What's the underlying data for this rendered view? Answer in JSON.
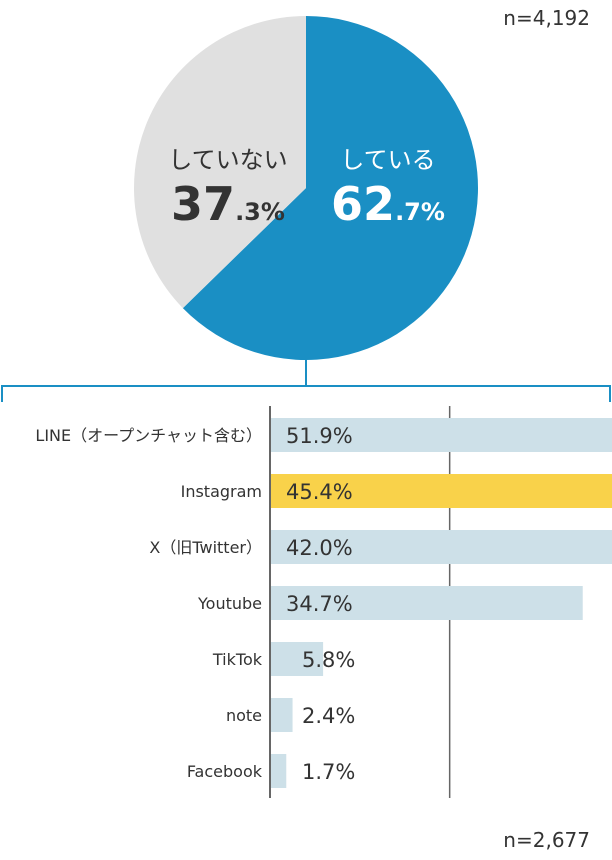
{
  "pie": {
    "n_label": "n=4,192",
    "slices": [
      {
        "label": "している",
        "value": 62.7,
        "int": "62",
        "dec": ".7%",
        "color": "#1a8fc4",
        "text_color": "#ffffff"
      },
      {
        "label": "していない",
        "value": 37.3,
        "int": "37",
        "dec": ".3%",
        "color": "#e0e0e0",
        "text_color": "#333333"
      }
    ]
  },
  "chart_data": {
    "type": "bar",
    "orientation": "horizontal",
    "categories": [
      "LINE（オープンチャット含む）",
      "Instagram",
      "X（旧Twitter）",
      "Youtube",
      "TikTok",
      "note",
      "Facebook"
    ],
    "values": [
      51.9,
      45.4,
      42.0,
      34.7,
      5.8,
      2.4,
      1.7
    ],
    "value_labels": [
      "51.9%",
      "45.4%",
      "42.0%",
      "34.7%",
      "5.8%",
      "2.4%",
      "1.7%"
    ],
    "xlim": [
      0,
      60
    ],
    "grid": true,
    "colors": {
      "default": "#cde0e8",
      "highlight": "#f9d24a"
    },
    "highlight_index": 1,
    "n_label": "n=2,677"
  }
}
